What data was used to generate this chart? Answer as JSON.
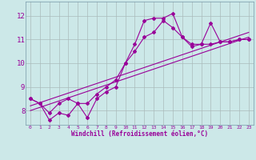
{
  "xlabel": "Windchill (Refroidissement éolien,°C)",
  "bg_color": "#cce8e8",
  "line_color": "#990099",
  "grid_color": "#aabbbb",
  "xlim": [
    -0.5,
    23.5
  ],
  "ylim": [
    7.4,
    12.6
  ],
  "xticks": [
    0,
    1,
    2,
    3,
    4,
    5,
    6,
    7,
    8,
    9,
    10,
    11,
    12,
    13,
    14,
    15,
    16,
    17,
    18,
    19,
    20,
    21,
    22,
    23
  ],
  "yticks": [
    8,
    9,
    10,
    11,
    12
  ],
  "series1_x": [
    0,
    1,
    2,
    3,
    4,
    5,
    6,
    7,
    8,
    9,
    10,
    11,
    12,
    13,
    14,
    15,
    16,
    17,
    18,
    19,
    20,
    21,
    22,
    23
  ],
  "series1_y": [
    8.5,
    8.3,
    7.6,
    7.9,
    7.8,
    8.3,
    7.7,
    8.5,
    8.8,
    9.0,
    10.0,
    10.8,
    11.8,
    11.9,
    11.9,
    12.1,
    11.1,
    10.8,
    10.8,
    11.7,
    10.9,
    10.9,
    11.0,
    11.0
  ],
  "series2_x": [
    0,
    1,
    2,
    3,
    4,
    5,
    6,
    7,
    8,
    9,
    10,
    11,
    12,
    13,
    14,
    15,
    16,
    17,
    18,
    19,
    20,
    21,
    22,
    23
  ],
  "series2_y": [
    8.5,
    8.3,
    7.9,
    8.3,
    8.5,
    8.3,
    8.3,
    8.7,
    9.0,
    9.3,
    10.0,
    10.5,
    11.1,
    11.3,
    11.8,
    11.5,
    11.1,
    10.7,
    10.8,
    10.8,
    10.9,
    10.9,
    11.0,
    11.0
  ],
  "trend1_x": [
    0,
    23
  ],
  "trend1_y": [
    8.2,
    11.3
  ],
  "trend2_x": [
    0,
    23
  ],
  "trend2_y": [
    8.0,
    11.1
  ],
  "marker": "D",
  "marker_size": 2,
  "linewidth": 0.8
}
